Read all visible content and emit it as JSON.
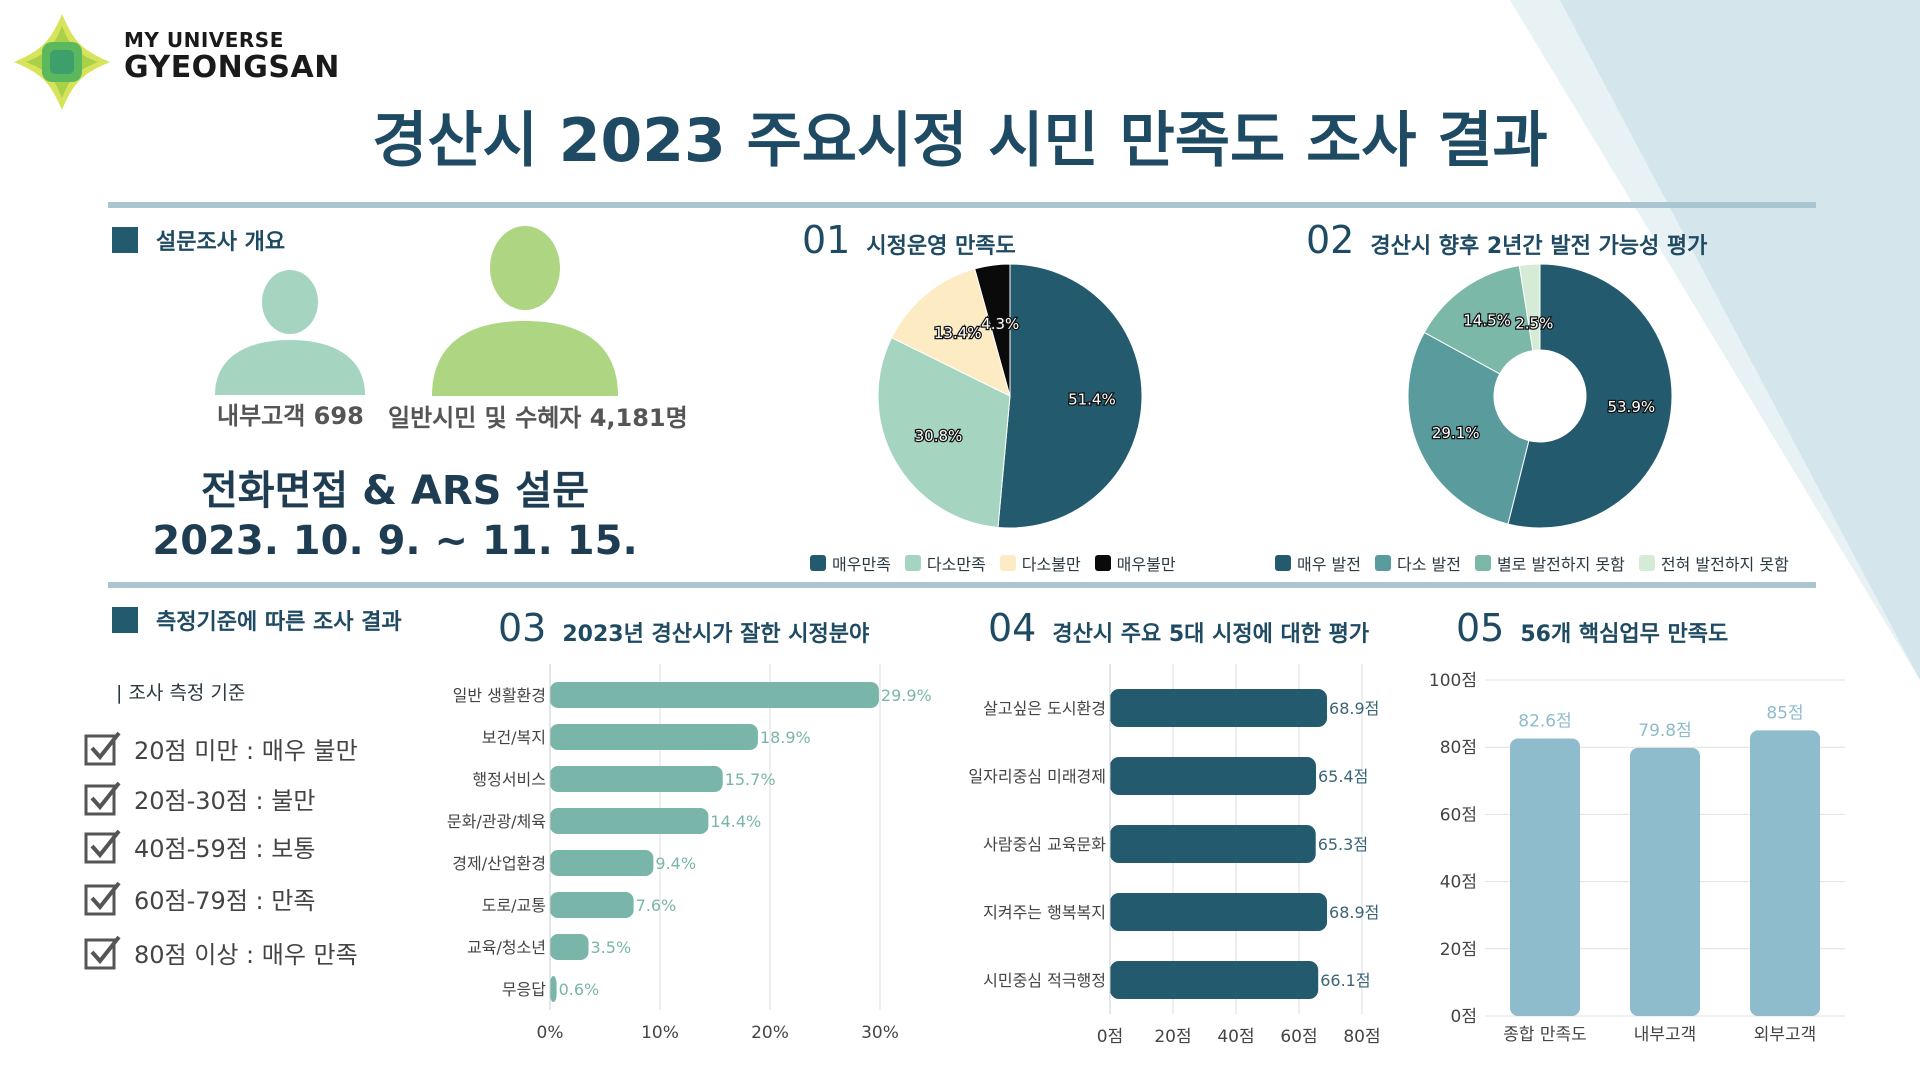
{
  "logo": {
    "line1": "MY UNIVERSE",
    "line2": "GYEONGSAN"
  },
  "title": "경산시 2023 주요시정 시민 만족도 조사 결과",
  "survey_overview": {
    "header": "설문조사 개요",
    "internal_label": "내부고객 698",
    "public_label": "일반시민 및 수혜자 4,181명",
    "method": "전화면접 & ARS 설문",
    "period": "2023. 10. 9. ~ 11. 15."
  },
  "criteria": {
    "header": "측정기준에 따른 조사 결과",
    "title": "| 조사 측정 기준",
    "items": [
      "20점 미만 : 매우 불만",
      "20점-30점 : 불만",
      "40점-59점 : 보통",
      "60점-79점 : 만족",
      "80점 이상 : 매우 만족"
    ]
  },
  "colors": {
    "dark": "#235a6e",
    "teal": "#5a9b9e",
    "mint": "#a5d5c0",
    "seafoam": "#7cb8a8",
    "cream": "#fdebc4",
    "black": "#0a0a0a",
    "lightgreen": "#d6ebd6",
    "bar03": "#7ab5aa",
    "bar05": "#8fbccc",
    "person1": "#a5d5c0",
    "person2": "#aed581"
  },
  "chart_data": [
    {
      "id": "01",
      "type": "pie",
      "title": "시정운영 만족도",
      "categories": [
        "매우만족",
        "다소만족",
        "다소불만",
        "매우불만"
      ],
      "values": [
        51.4,
        30.8,
        13.4,
        4.3
      ],
      "labels": [
        "51.4%",
        "30.8%",
        "13.4%",
        "4.3%"
      ],
      "legend": "bottom"
    },
    {
      "id": "02",
      "type": "pie",
      "title": "경산시 향후 2년간 발전 가능성 평가",
      "categories": [
        "매우 발전",
        "다소 발전",
        "별로 발전하지 못함",
        "전혀 발전하지 못함"
      ],
      "values": [
        53.9,
        29.1,
        14.5,
        2.5
      ],
      "labels": [
        "53.9%",
        "29.1%",
        "14.5%",
        "2.5%"
      ],
      "donut": true,
      "legend": "bottom"
    },
    {
      "id": "03",
      "type": "bar",
      "orientation": "horizontal",
      "title": "2023년 경산시가 잘한 시정분야",
      "categories": [
        "일반 생활환경",
        "보건/복지",
        "행정서비스",
        "문화/관광/체육",
        "경제/산업환경",
        "도로/교통",
        "교육/청소년",
        "무응답"
      ],
      "values": [
        29.9,
        18.9,
        15.7,
        14.4,
        9.4,
        7.6,
        3.5,
        0.6
      ],
      "labels": [
        "29.9%",
        "18.9%",
        "15.7%",
        "14.4%",
        "9.4%",
        "7.6%",
        "3.5%",
        "0.6%"
      ],
      "xlim": [
        0,
        30
      ],
      "ticks": [
        0,
        10,
        20,
        30
      ],
      "tick_labels": [
        "0%",
        "10%",
        "20%",
        "30%"
      ]
    },
    {
      "id": "04",
      "type": "bar",
      "orientation": "horizontal",
      "title": "경산시 주요 5대 시정에 대한 평가",
      "categories": [
        "살고싶은 도시환경",
        "일자리중심 미래경제",
        "사람중심 교육문화",
        "지켜주는 행복복지",
        "시민중심 적극행정"
      ],
      "values": [
        68.9,
        65.4,
        65.3,
        68.9,
        66.1
      ],
      "labels": [
        "68.9점",
        "65.4점",
        "65.3점",
        "68.9점",
        "66.1점"
      ],
      "xlim": [
        0,
        80
      ],
      "ticks": [
        0,
        20,
        40,
        60,
        80
      ],
      "tick_labels": [
        "0점",
        "20점",
        "40점",
        "60점",
        "80점"
      ]
    },
    {
      "id": "05",
      "type": "bar",
      "orientation": "vertical",
      "title": "56개 핵심업무 만족도",
      "categories": [
        "종합 만족도",
        "내부고객",
        "외부고객"
      ],
      "values": [
        82.6,
        79.8,
        85
      ],
      "labels": [
        "82.6점",
        "79.8점",
        "85점"
      ],
      "ylim": [
        0,
        100
      ],
      "ticks": [
        0,
        20,
        40,
        60,
        80,
        100
      ],
      "tick_labels": [
        "0점",
        "20점",
        "40점",
        "60점",
        "80점",
        "100점"
      ],
      "grid": true
    }
  ]
}
